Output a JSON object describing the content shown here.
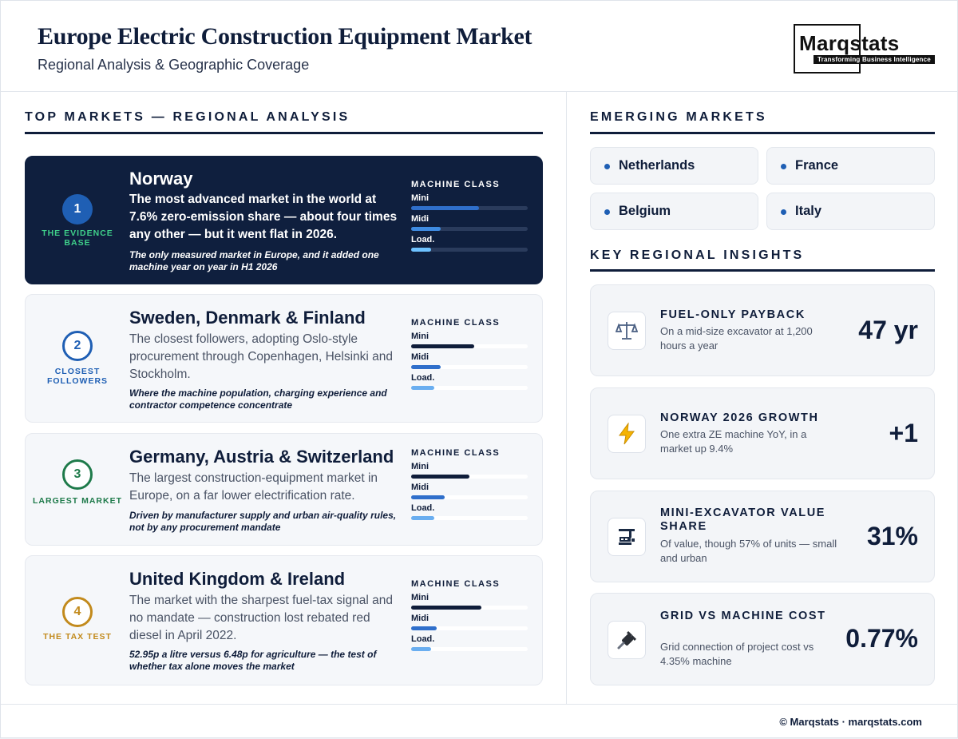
{
  "header": {
    "title": "Europe Electric Construction Equipment Market",
    "subtitle": "Regional Analysis & Geographic Coverage",
    "logo_name": "Marqstats",
    "logo_tagline": "Transforming Business Intelligence"
  },
  "top_markets": {
    "heading": "TOP MARKETS — REGIONAL ANALYSIS",
    "machine_class_label": "MACHINE CLASS",
    "class_labels": [
      "Mini",
      "Midi",
      "Load."
    ],
    "cards": [
      {
        "rank": "1",
        "tag": "THE EVIDENCE BASE",
        "name": "Norway",
        "description": "The most advanced market in the world at 7.6% zero-emission share — about four times any other — but it went flat in 2026.",
        "note": "The only measured market in Europe, and it added one machine year on year in H1 2026",
        "levels": [
          0.58,
          0.25,
          0.17
        ],
        "accent": "#1f5fb4"
      },
      {
        "rank": "2",
        "tag": "CLOSEST FOLLOWERS",
        "name": "Sweden, Denmark & Finland",
        "description": "The closest followers, adopting Oslo-style procurement through Copenhagen, Helsinki and Stockholm.",
        "note": "Where the machine population, charging experience and contractor competence concentrate",
        "levels": [
          0.54,
          0.25,
          0.2
        ],
        "accent": "#1f5fb4"
      },
      {
        "rank": "3",
        "tag": "LARGEST MARKET",
        "name": "Germany, Austria & Switzerland",
        "description": "The largest construction-equipment market in Europe, on a far lower electrification rate.",
        "note": "Driven by manufacturer supply and urban air-quality rules, not by any procurement mandate",
        "levels": [
          0.5,
          0.29,
          0.2
        ],
        "accent": "#1e7a4a"
      },
      {
        "rank": "4",
        "tag": "THE TAX TEST",
        "name": "United Kingdom & Ireland",
        "description": "The market with the sharpest fuel-tax signal and no mandate — construction lost rebated red diesel in April 2022.",
        "note": "52.95p a litre versus 6.48p for agriculture — the test of whether tax alone moves the market",
        "levels": [
          0.6,
          0.22,
          0.17
        ],
        "accent": "#c28a1c"
      }
    ]
  },
  "emerging": {
    "heading": "EMERGING MARKETS",
    "items": [
      "Netherlands",
      "France",
      "Belgium",
      "Italy"
    ]
  },
  "insights": {
    "heading": "KEY REGIONAL INSIGHTS",
    "cards": [
      {
        "icon": "scales-icon",
        "title": "FUEL-ONLY PAYBACK",
        "description": "On a mid-size excavator at 1,200 hours a year",
        "value": "47 yr"
      },
      {
        "icon": "lightning-icon",
        "title": "NORWAY 2026 GROWTH",
        "description": "One extra ZE machine YoY, in a market up 9.4%",
        "value": "+1"
      },
      {
        "icon": "excavator-icon",
        "title": "MINI-EXCAVATOR VALUE SHARE",
        "description": "Of value, though 57% of units — small and urban",
        "value": "31%"
      },
      {
        "icon": "plug-icon",
        "title": "GRID VS MACHINE COST",
        "description": "Grid connection of project cost vs 4.35% machine",
        "value": "0.77%"
      }
    ]
  },
  "footer": {
    "text": "© Marqstats · marqstats.com"
  },
  "colors": {
    "navy": "#0f1d3a",
    "dark_card": "#0f1f3e",
    "bar_dark": "#0f1d3a",
    "bar_mid": "#2f6fcb",
    "bar_light": "#6aaef0"
  }
}
